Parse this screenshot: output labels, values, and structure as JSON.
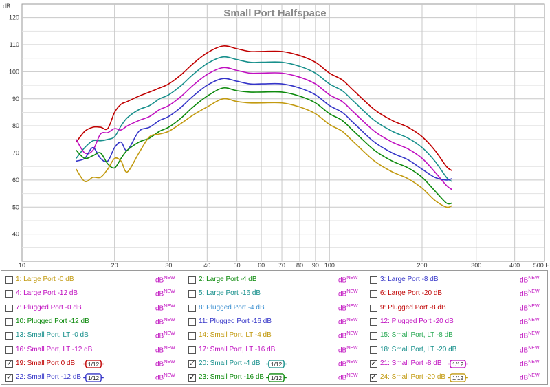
{
  "chart_data": {
    "type": "line",
    "title": "Small Port Halfspace",
    "ylabel": "dB",
    "xunit": "Hz",
    "xscale": "log",
    "xlim": [
      10,
      500
    ],
    "ylim": [
      30,
      125
    ],
    "xticks": [
      10,
      20,
      30,
      40,
      50,
      60,
      70,
      80,
      90,
      100,
      200,
      300,
      400,
      500
    ],
    "xtick_labels": [
      "10",
      "20",
      "30",
      "40",
      "50",
      "60",
      "70",
      "80",
      "90",
      "100",
      "200",
      "300",
      "400",
      "500 Hz"
    ],
    "yticks": [
      40,
      50,
      60,
      70,
      80,
      90,
      100,
      110,
      120
    ],
    "grid": true,
    "series": [
      {
        "name": "19: Small Port 0 dB",
        "color": "#c00000",
        "x": [
          15,
          16,
          17,
          18,
          19,
          20,
          21,
          22,
          24,
          26,
          28,
          30,
          33,
          36,
          40,
          45,
          50,
          55,
          60,
          70,
          80,
          90,
          100,
          110,
          120,
          140,
          160,
          180,
          200,
          220,
          240,
          250
        ],
        "y": [
          74,
          78,
          79.5,
          79.5,
          79,
          85,
          88,
          89,
          91,
          92.5,
          94,
          95.5,
          99,
          103,
          107,
          109.5,
          108.5,
          107.5,
          107.5,
          107.5,
          106,
          103.5,
          99.5,
          97,
          93,
          86,
          82,
          79.5,
          76,
          71,
          65,
          63.5
        ]
      },
      {
        "name": "20: Small Port -4 dB",
        "color": "#18908c",
        "x": [
          15,
          16,
          17,
          18,
          19,
          20,
          21,
          22,
          24,
          26,
          28,
          30,
          33,
          36,
          40,
          45,
          50,
          55,
          60,
          70,
          80,
          90,
          100,
          110,
          120,
          140,
          160,
          180,
          200,
          220,
          240,
          250
        ],
        "y": [
          68,
          72,
          74.5,
          74.5,
          75,
          76,
          80,
          83,
          86,
          87.5,
          90,
          91.5,
          95,
          99,
          103,
          105.5,
          104.5,
          103.5,
          103.5,
          103.5,
          102,
          99.5,
          95.5,
          93,
          89,
          82,
          78,
          75.5,
          72,
          67,
          61,
          59.5
        ]
      },
      {
        "name": "21: Small Port -8 dB",
        "color": "#c010c0",
        "x": [
          15,
          16,
          17,
          18,
          19,
          20,
          21,
          22,
          24,
          26,
          28,
          30,
          33,
          36,
          40,
          45,
          50,
          55,
          60,
          70,
          80,
          90,
          100,
          110,
          120,
          140,
          160,
          180,
          200,
          220,
          240,
          250
        ],
        "y": [
          75,
          70,
          71,
          77,
          77.5,
          79,
          78.5,
          80,
          82,
          83.5,
          86,
          87.5,
          91,
          95,
          99,
          101.5,
          100.5,
          99.5,
          99.5,
          99.5,
          98,
          95.5,
          91.5,
          89,
          85,
          78,
          74,
          71.5,
          68,
          63,
          58,
          56.5
        ]
      },
      {
        "name": "22: Small Port -12 dB",
        "color": "#3535c8",
        "x": [
          15,
          16,
          17,
          18,
          19,
          20,
          21,
          22,
          24,
          26,
          28,
          30,
          33,
          36,
          40,
          45,
          50,
          55,
          60,
          70,
          80,
          90,
          100,
          110,
          120,
          140,
          160,
          180,
          200,
          220,
          240,
          250
        ],
        "y": [
          67,
          68,
          72,
          68,
          67,
          72,
          74,
          71,
          78,
          79.5,
          82,
          83.5,
          87,
          91,
          95,
          97.5,
          96.5,
          95.5,
          95.5,
          95.5,
          94,
          91.5,
          87.5,
          85,
          81,
          74,
          70,
          67.5,
          64,
          61,
          60,
          60.5
        ]
      },
      {
        "name": "23: Small Port -16 dB",
        "color": "#0d8a0d",
        "x": [
          15,
          16,
          17,
          18,
          19,
          20,
          21,
          22,
          24,
          26,
          28,
          30,
          33,
          36,
          40,
          45,
          50,
          55,
          60,
          70,
          80,
          90,
          100,
          110,
          120,
          140,
          160,
          180,
          200,
          220,
          240,
          250
        ],
        "y": [
          71,
          68,
          69,
          70,
          66,
          64.5,
          68,
          71,
          74,
          75.5,
          78,
          79.5,
          83,
          87,
          91,
          94,
          93,
          92.5,
          92.5,
          92.5,
          91,
          88.5,
          84.5,
          82,
          78,
          71,
          67,
          64.5,
          61,
          56,
          51.5,
          51.5
        ]
      },
      {
        "name": "24: Small Port -20 dB",
        "color": "#c29a10",
        "x": [
          15,
          16,
          17,
          18,
          19,
          20,
          21,
          22,
          24,
          26,
          28,
          30,
          33,
          36,
          40,
          45,
          50,
          55,
          60,
          70,
          80,
          90,
          100,
          110,
          120,
          140,
          160,
          180,
          200,
          220,
          240,
          250
        ],
        "y": [
          64,
          59.5,
          61,
          61,
          64,
          68,
          67,
          63,
          70,
          76,
          77,
          78,
          81,
          84,
          87,
          90,
          89,
          88.5,
          88.5,
          88.5,
          87,
          84.5,
          80.5,
          78,
          74,
          67,
          63,
          60.5,
          57,
          52.5,
          50,
          50.5
        ]
      }
    ]
  },
  "legend": [
    [
      {
        "label": "1: Large Port -0 dB",
        "color": "#c29a10",
        "checked": false,
        "smoothing": "",
        "dbnew": "dB",
        "dbnew_sup": "NEW"
      },
      {
        "label": "2: Large Port -4 dB",
        "color": "#0d8a0d",
        "checked": false,
        "smoothing": "",
        "dbnew": "dB",
        "dbnew_sup": "NEW"
      },
      {
        "label": "3: Large Port -8 dB",
        "color": "#3535c8",
        "checked": false,
        "smoothing": "",
        "dbnew": "dB",
        "dbnew_sup": "NEW"
      }
    ],
    [
      {
        "label": "4: Large Port -12 dB",
        "color": "#c010c0",
        "checked": false,
        "smoothing": "",
        "dbnew": "dB",
        "dbnew_sup": "NEW"
      },
      {
        "label": "5: Large Port -16 dB",
        "color": "#18908c",
        "checked": false,
        "smoothing": "",
        "dbnew": "dB",
        "dbnew_sup": "NEW"
      },
      {
        "label": "6: Large Port -20 dB",
        "color": "#c00000",
        "checked": false,
        "smoothing": "",
        "dbnew": "dB",
        "dbnew_sup": "NEW"
      }
    ],
    [
      {
        "label": "7: Plugged Port -0 dB",
        "color": "#c010c0",
        "checked": false,
        "smoothing": "",
        "dbnew": "dB",
        "dbnew_sup": "NEW"
      },
      {
        "label": "8: Plugged Port -4 dB",
        "color": "#3b8fd0",
        "checked": false,
        "smoothing": "",
        "dbnew": "dB",
        "dbnew_sup": "NEW"
      },
      {
        "label": "9: Plugged Port -8 dB",
        "color": "#c00000",
        "checked": false,
        "smoothing": "",
        "dbnew": "dB",
        "dbnew_sup": "NEW"
      }
    ],
    [
      {
        "label": "10: Plugged Port -12 dB",
        "color": "#0d8a0d",
        "checked": false,
        "smoothing": "",
        "dbnew": "dB",
        "dbnew_sup": "NEW"
      },
      {
        "label": "11: Plugged Port -16 dB",
        "color": "#3535c8",
        "checked": false,
        "smoothing": "",
        "dbnew": "dB",
        "dbnew_sup": "NEW"
      },
      {
        "label": "12: Plugged Port -20 dB",
        "color": "#c010c0",
        "checked": false,
        "smoothing": "",
        "dbnew": "dB",
        "dbnew_sup": "NEW"
      }
    ],
    [
      {
        "label": "13: Small Port, LT -0 dB",
        "color": "#18908c",
        "checked": false,
        "smoothing": "",
        "dbnew": "dB",
        "dbnew_sup": "NEW"
      },
      {
        "label": "14: Small Port, LT -4 dB",
        "color": "#c29a10",
        "checked": false,
        "smoothing": "",
        "dbnew": "dB",
        "dbnew_sup": "NEW"
      },
      {
        "label": "15: Small Port, LT -8 dB",
        "color": "#2aaa55",
        "checked": false,
        "smoothing": "",
        "dbnew": "dB",
        "dbnew_sup": "NEW"
      }
    ],
    [
      {
        "label": "16: Small Port, LT -12 dB",
        "color": "#c010c0",
        "checked": false,
        "smoothing": "",
        "dbnew": "dB",
        "dbnew_sup": "NEW"
      },
      {
        "label": "17: Small Port, LT -16 dB",
        "color": "#c010c0",
        "checked": false,
        "smoothing": "",
        "dbnew": "dB",
        "dbnew_sup": "NEW"
      },
      {
        "label": "18: Small Port, LT -20 dB",
        "color": "#18908c",
        "checked": false,
        "smoothing": "",
        "dbnew": "dB",
        "dbnew_sup": "NEW"
      }
    ],
    [
      {
        "label": "19: Small Port 0 dB",
        "color": "#c00000",
        "checked": true,
        "smoothing": "1/12",
        "dbnew": "dB",
        "dbnew_sup": "NEW"
      },
      {
        "label": "20: Small Port -4 dB",
        "color": "#18908c",
        "checked": true,
        "smoothing": "1/12",
        "dbnew": "dB",
        "dbnew_sup": "NEW"
      },
      {
        "label": "21: Small Port -8 dB",
        "color": "#c010c0",
        "checked": true,
        "smoothing": "1/12",
        "dbnew": "dB",
        "dbnew_sup": "NEW"
      }
    ],
    [
      {
        "label": "22: Small Port -12 dB",
        "color": "#3535c8",
        "checked": true,
        "smoothing": "1/12",
        "dbnew": "dB",
        "dbnew_sup": "NEW"
      },
      {
        "label": "23: Small Port -16 dB",
        "color": "#0d8a0d",
        "checked": true,
        "smoothing": "1/12",
        "dbnew": "dB",
        "dbnew_sup": "NEW"
      },
      {
        "label": "24: Small Port -20 dB",
        "color": "#c29a10",
        "checked": true,
        "smoothing": "1/12",
        "dbnew": "dB",
        "dbnew_sup": "NEW"
      }
    ]
  ],
  "colors": {
    "dbnew": "#c010c0",
    "grid_minor": "#e2e2e2",
    "grid_major": "#c8c8c8",
    "plot_bg": "#ffffff"
  }
}
